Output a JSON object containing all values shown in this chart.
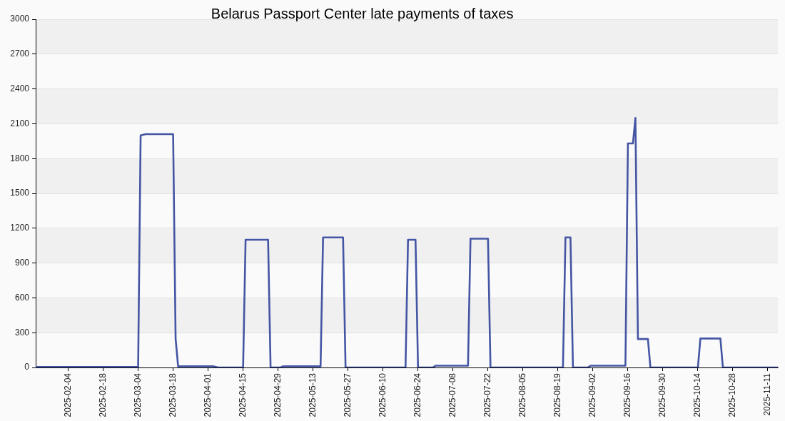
{
  "chart_data": {
    "type": "line",
    "title": "Belarus Passport Center late payments of taxes",
    "x": [
      "2025-01-22",
      "2025-03-04",
      "2025-03-05",
      "2025-03-07",
      "2025-03-18",
      "2025-03-19",
      "2025-03-20",
      "2025-04-03",
      "2025-04-05",
      "2025-04-15",
      "2025-04-16",
      "2025-04-25",
      "2025-04-26",
      "2025-04-30",
      "2025-05-01",
      "2025-05-16",
      "2025-05-17",
      "2025-05-25",
      "2025-05-26",
      "2025-06-19",
      "2025-06-20",
      "2025-06-23",
      "2025-06-24",
      "2025-06-30",
      "2025-07-01",
      "2025-07-14",
      "2025-07-15",
      "2025-07-22",
      "2025-07-23",
      "2025-08-21",
      "2025-08-22",
      "2025-08-24",
      "2025-08-25",
      "2025-08-31",
      "2025-09-01",
      "2025-09-15",
      "2025-09-16",
      "2025-09-18",
      "2025-09-19",
      "2025-09-20",
      "2025-09-24",
      "2025-09-25",
      "2025-10-14",
      "2025-10-15",
      "2025-10-23",
      "2025-10-24",
      "2025-11-15"
    ],
    "values": [
      5,
      5,
      2000,
      2010,
      2010,
      245,
      10,
      10,
      0,
      0,
      1100,
      1100,
      0,
      0,
      10,
      10,
      1120,
      1120,
      0,
      0,
      1100,
      1100,
      0,
      0,
      15,
      15,
      1110,
      1110,
      0,
      0,
      1120,
      1120,
      0,
      0,
      15,
      15,
      1930,
      1930,
      2150,
      245,
      245,
      0,
      0,
      250,
      250,
      0,
      0
    ],
    "color": "#4455a4",
    "xlim": [
      "2025-01-22",
      "2025-11-15"
    ],
    "xticks": [
      "2025-02-04",
      "2025-02-18",
      "2025-03-04",
      "2025-03-18",
      "2025-04-01",
      "2025-04-15",
      "2025-04-29",
      "2025-05-13",
      "2025-05-27",
      "2025-06-10",
      "2025-06-24",
      "2025-07-08",
      "2025-07-22",
      "2025-08-05",
      "2025-08-19",
      "2025-09-02",
      "2025-09-16",
      "2025-09-30",
      "2025-10-14",
      "2025-10-28",
      "2025-11-11"
    ],
    "ylim": [
      0,
      3000
    ],
    "yticks": [
      0,
      300,
      600,
      900,
      1200,
      1500,
      1800,
      2100,
      2400,
      2700,
      3000
    ],
    "grid": "y"
  }
}
